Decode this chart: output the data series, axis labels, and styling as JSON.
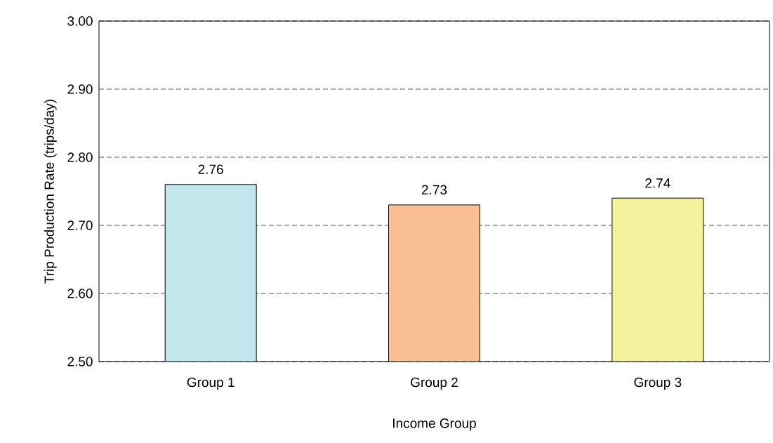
{
  "chart_data": {
    "type": "bar",
    "xlabel": "Income Group",
    "ylabel": "Trip Production Rate (trips/day)",
    "categories": [
      "Group 1",
      "Group 2",
      "Group 3"
    ],
    "values": [
      2.76,
      2.73,
      2.74
    ],
    "colors": [
      "#c3e6ec",
      "#f8bf95",
      "#f3f29d"
    ],
    "ylim": [
      2.5,
      3.0
    ],
    "yticks": [
      {
        "value": 2.5,
        "label": "2.50"
      },
      {
        "value": 2.6,
        "label": "2.60"
      },
      {
        "value": 2.7,
        "label": "2.70"
      },
      {
        "value": 2.8,
        "label": "2.80"
      },
      {
        "value": 2.9,
        "label": "2.90"
      },
      {
        "value": 3.0,
        "label": "3.00"
      }
    ],
    "grid": "y",
    "data_labels": true
  }
}
